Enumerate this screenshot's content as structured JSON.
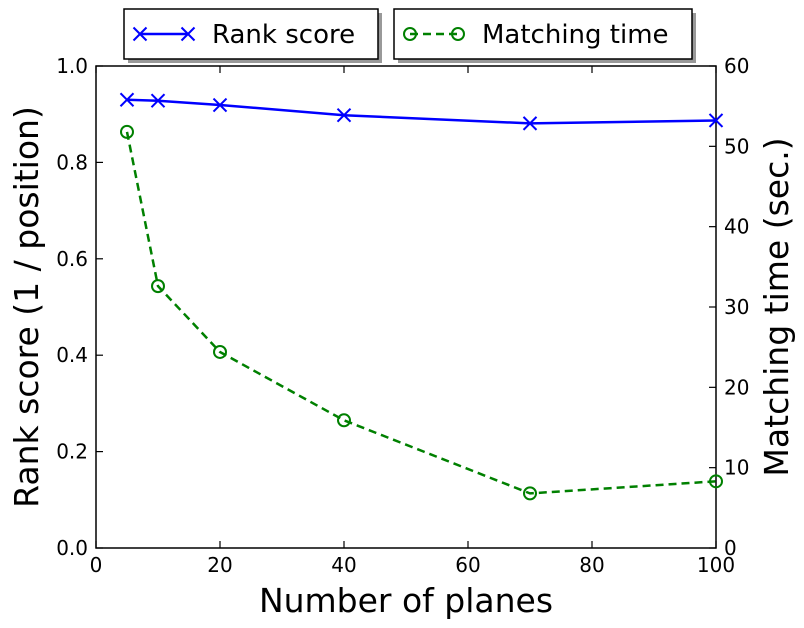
{
  "chart_data": {
    "type": "line",
    "xlabel": "Number of planes",
    "ylabel": "Rank score (1 / position)",
    "y2label": "Matching time (sec.)",
    "xlim": [
      0,
      100
    ],
    "ylim": [
      0,
      1.0
    ],
    "y2lim": [
      0,
      60
    ],
    "xticks": [
      "0",
      "20",
      "40",
      "60",
      "80",
      "100"
    ],
    "yticks": [
      "0.0",
      "0.2",
      "0.4",
      "0.6",
      "0.8",
      "1.0"
    ],
    "y2ticks": [
      "0",
      "10",
      "20",
      "30",
      "40",
      "50",
      "60"
    ],
    "grid": false,
    "legend_position": "top, outside plot",
    "series": [
      {
        "name": "Rank score",
        "axis": "left",
        "color": "#0000ff",
        "marker": "x",
        "linestyle": "solid",
        "x": [
          5,
          10,
          20,
          40,
          70,
          100
        ],
        "y": [
          0.93,
          0.928,
          0.919,
          0.898,
          0.881,
          0.887
        ]
      },
      {
        "name": "Matching time",
        "axis": "right",
        "color": "#008000",
        "marker": "o",
        "linestyle": "dashed",
        "x": [
          5,
          10,
          20,
          40,
          70,
          100
        ],
        "y": [
          51.8,
          32.6,
          24.4,
          15.9,
          6.8,
          8.3
        ]
      }
    ]
  }
}
